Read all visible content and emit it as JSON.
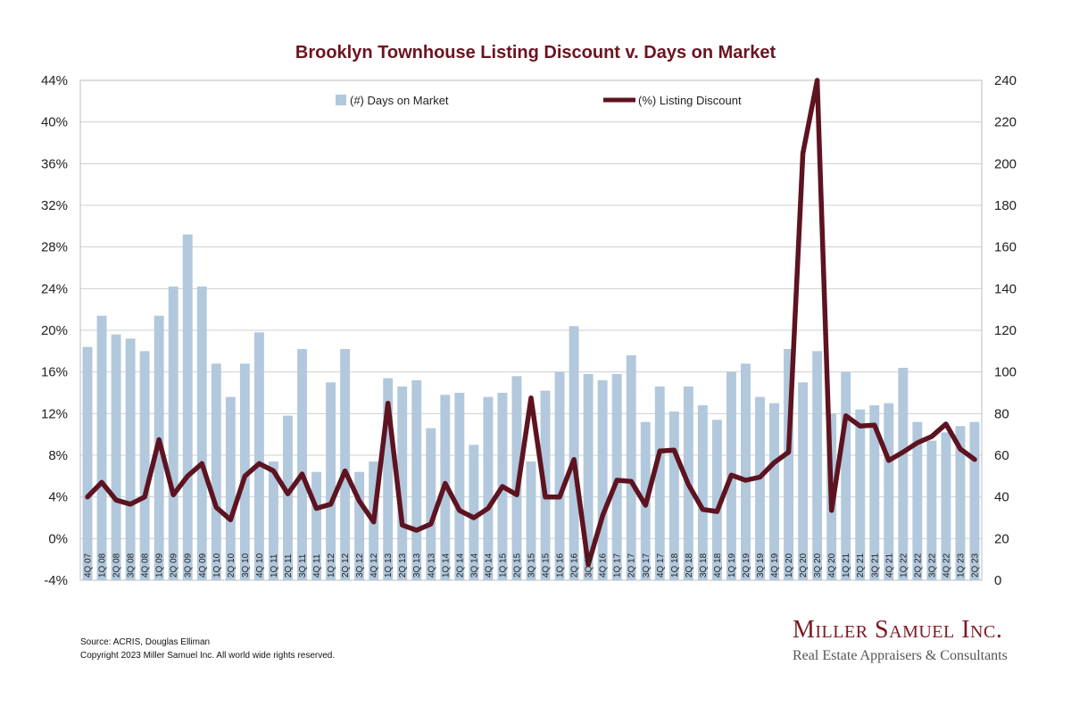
{
  "chart_data": {
    "type": "bar+line",
    "title": "Brooklyn Townhouse Listing Discount v. Days on Market",
    "categories": [
      "4Q 07",
      "1Q 08",
      "2Q 08",
      "3Q 08",
      "4Q 08",
      "1Q 09",
      "2Q 09",
      "3Q 09",
      "4Q 09",
      "1Q 10",
      "2Q 10",
      "3Q 10",
      "4Q 10",
      "1Q 11",
      "2Q 11",
      "3Q 11",
      "4Q 11",
      "1Q 12",
      "2Q 12",
      "3Q 12",
      "4Q 12",
      "1Q 13",
      "2Q 13",
      "3Q 13",
      "4Q 13",
      "1Q 14",
      "2Q 14",
      "3Q 14",
      "4Q 14",
      "1Q 15",
      "2Q 15",
      "3Q 15",
      "4Q 15",
      "1Q 16",
      "2Q 16",
      "3Q 16",
      "4Q 16",
      "1Q 17",
      "2Q 17",
      "3Q 17",
      "4Q 17",
      "1Q 18",
      "2Q 18",
      "3Q 18",
      "4Q 18",
      "1Q 19",
      "2Q 19",
      "3Q 19",
      "4Q 19",
      "1Q 20",
      "2Q 20",
      "3Q 20",
      "4Q 20",
      "1Q 21",
      "2Q 21",
      "3Q 21",
      "4Q 21",
      "1Q 22",
      "2Q 22",
      "3Q 22",
      "4Q 22",
      "1Q 23",
      "2Q 23"
    ],
    "series": [
      {
        "name": "(#) Days on Market",
        "axis": "right",
        "render": "bar",
        "color": "#b2c8dc",
        "values": [
          112,
          127,
          118,
          116,
          110,
          127,
          141,
          166,
          141,
          104,
          88,
          104,
          119,
          57,
          79,
          111,
          52,
          95,
          111,
          52,
          57,
          97,
          93,
          96,
          73,
          89,
          90,
          65,
          88,
          90,
          98,
          57,
          91,
          100,
          122,
          99,
          96,
          99,
          108,
          76,
          93,
          81,
          93,
          84,
          77,
          100,
          104,
          88,
          85,
          111,
          95,
          110,
          80,
          100,
          82,
          84,
          85,
          102,
          76,
          67,
          71,
          74,
          76
        ],
        "visible_top": "equals the right-axis value"
      },
      {
        "name": "(%) Listing Discount",
        "axis": "left",
        "render": "line",
        "color": "#5e1320",
        "values": [
          4.0,
          5.4,
          3.7,
          3.3,
          4.0,
          9.5,
          4.2,
          6.0,
          7.2,
          3.0,
          1.8,
          6.0,
          7.2,
          6.5,
          4.3,
          6.2,
          2.9,
          3.3,
          6.5,
          3.6,
          1.6,
          13.0,
          1.3,
          0.8,
          1.4,
          5.3,
          2.7,
          2.0,
          2.9,
          5.0,
          4.2,
          13.5,
          4.0,
          4.0,
          7.6,
          -2.5,
          2.2,
          5.6,
          5.5,
          3.2,
          8.4,
          8.5,
          5.2,
          2.8,
          2.6,
          6.1,
          5.6,
          5.9,
          7.3,
          8.3,
          37.0,
          44.0,
          2.7,
          11.8,
          10.8,
          10.9,
          7.5,
          8.3,
          9.2,
          9.8,
          11.0,
          8.6,
          7.6
        ]
      }
    ],
    "left_axis": {
      "min": -4,
      "max": 44,
      "step": 4,
      "format": "percent"
    },
    "right_axis": {
      "min": 0,
      "max": 240,
      "step": 20
    },
    "grid": true,
    "legend": [
      "(#) Days on Market",
      "(%) Listing Discount"
    ],
    "legend_placement": "top-center"
  },
  "footer": {
    "source": "Source: ACRIS, Douglas Elliman",
    "copyright": "Copyright 2023 Miller Samuel Inc.  All world wide rights reserved."
  },
  "brand": {
    "name": "Miller Samuel Inc.",
    "tagline": "Real Estate Appraisers & Consultants"
  }
}
